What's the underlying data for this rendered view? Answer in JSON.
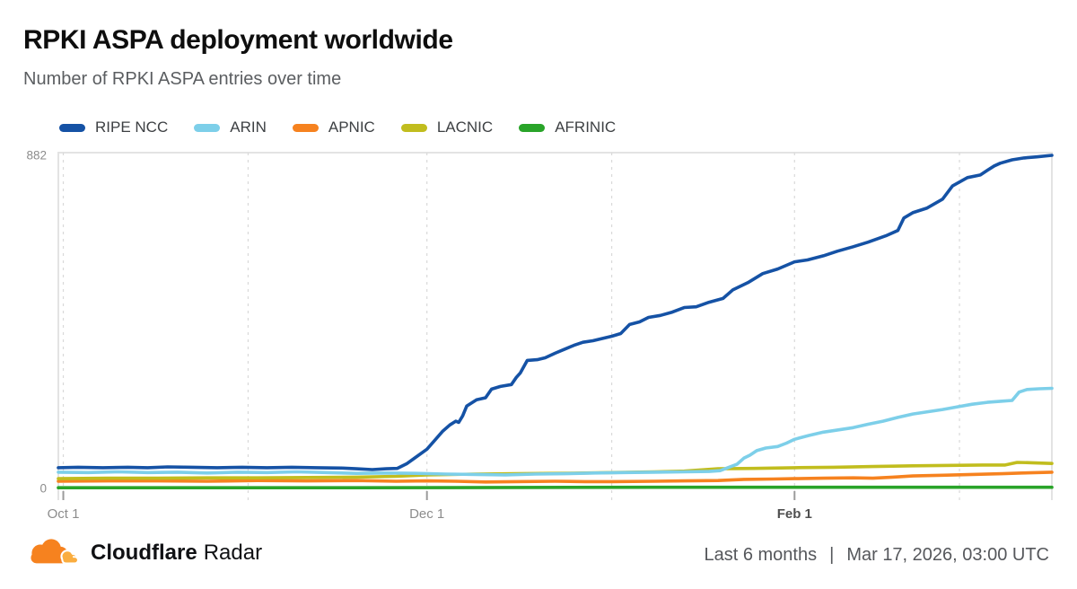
{
  "header": {
    "title": "RPKI ASPA deployment worldwide",
    "subtitle": "Number of RPKI ASPA entries over time"
  },
  "footer": {
    "brand_bold": "Cloudflare",
    "brand_regular": "Radar",
    "range_label": "Last 6 months",
    "separator": "|",
    "timestamp": "Mar 17, 2026, 03:00 UTC",
    "logo_main_color": "#F6821F",
    "logo_accent_color": "#FAAD3F"
  },
  "chart_data": {
    "type": "line",
    "title": "RPKI ASPA deployment worldwide",
    "subtitle": "Number of RPKI ASPA entries over time",
    "xlabel": "",
    "ylabel": "",
    "ylim": [
      0,
      882
    ],
    "grid": "vertical-dashed",
    "legend_position": "top",
    "y_ticks": [
      {
        "value": 882,
        "label": "882"
      },
      {
        "value": 0,
        "label": "0"
      }
    ],
    "x_gridlines": [
      {
        "pos": 0.005,
        "label": "Oct 1",
        "bold": false
      },
      {
        "pos": 0.191,
        "label": "",
        "bold": false
      },
      {
        "pos": 0.371,
        "label": "Dec 1",
        "bold": false
      },
      {
        "pos": 0.557,
        "label": "",
        "bold": false
      },
      {
        "pos": 0.741,
        "label": "Feb 1",
        "bold": true
      },
      {
        "pos": 0.907,
        "label": "",
        "bold": false
      }
    ],
    "series": [
      {
        "name": "AFRINIC",
        "color": "#29A429",
        "points": [
          [
            0,
            2
          ],
          [
            0.3,
            2
          ],
          [
            0.6,
            3
          ],
          [
            1,
            3
          ]
        ]
      },
      {
        "name": "APNIC",
        "color": "#F6821F",
        "points": [
          [
            0,
            19
          ],
          [
            0.05,
            20
          ],
          [
            0.1,
            20
          ],
          [
            0.15,
            19
          ],
          [
            0.2,
            21
          ],
          [
            0.25,
            20
          ],
          [
            0.3,
            21
          ],
          [
            0.34,
            19
          ],
          [
            0.371,
            20
          ],
          [
            0.4,
            19
          ],
          [
            0.43,
            17
          ],
          [
            0.46,
            18
          ],
          [
            0.5,
            19
          ],
          [
            0.53,
            18
          ],
          [
            0.557,
            18
          ],
          [
            0.6,
            19
          ],
          [
            0.63,
            20
          ],
          [
            0.664,
            21
          ],
          [
            0.69,
            24
          ],
          [
            0.72,
            25
          ],
          [
            0.741,
            26
          ],
          [
            0.77,
            27
          ],
          [
            0.8,
            28
          ],
          [
            0.82,
            27
          ],
          [
            0.84,
            30
          ],
          [
            0.86,
            33
          ],
          [
            0.89,
            35
          ],
          [
            0.92,
            37
          ],
          [
            0.95,
            39
          ],
          [
            0.97,
            41
          ],
          [
            1,
            43
          ]
        ]
      },
      {
        "name": "LACNIC",
        "color": "#C1BD1E",
        "points": [
          [
            0,
            26
          ],
          [
            0.05,
            27
          ],
          [
            0.1,
            27
          ],
          [
            0.15,
            28
          ],
          [
            0.2,
            28
          ],
          [
            0.25,
            29
          ],
          [
            0.3,
            30
          ],
          [
            0.34,
            32
          ],
          [
            0.371,
            36
          ],
          [
            0.42,
            38
          ],
          [
            0.46,
            39
          ],
          [
            0.5,
            40
          ],
          [
            0.53,
            41
          ],
          [
            0.557,
            42
          ],
          [
            0.6,
            44
          ],
          [
            0.63,
            46
          ],
          [
            0.664,
            52
          ],
          [
            0.7,
            53
          ],
          [
            0.741,
            55
          ],
          [
            0.78,
            56
          ],
          [
            0.82,
            58
          ],
          [
            0.86,
            60
          ],
          [
            0.9,
            61
          ],
          [
            0.93,
            62
          ],
          [
            0.953,
            62
          ],
          [
            0.965,
            69
          ],
          [
            0.98,
            68
          ],
          [
            1,
            66
          ]
        ]
      },
      {
        "name": "ARIN",
        "color": "#7DCFE9",
        "points": [
          [
            0,
            43
          ],
          [
            0.03,
            42
          ],
          [
            0.06,
            44
          ],
          [
            0.09,
            42
          ],
          [
            0.12,
            43
          ],
          [
            0.15,
            41
          ],
          [
            0.18,
            43
          ],
          [
            0.21,
            42
          ],
          [
            0.24,
            44
          ],
          [
            0.27,
            42
          ],
          [
            0.3,
            40
          ],
          [
            0.33,
            41
          ],
          [
            0.36,
            40
          ],
          [
            0.39,
            38
          ],
          [
            0.42,
            37
          ],
          [
            0.45,
            36
          ],
          [
            0.48,
            38
          ],
          [
            0.51,
            39
          ],
          [
            0.54,
            41
          ],
          [
            0.57,
            42
          ],
          [
            0.6,
            43
          ],
          [
            0.63,
            44
          ],
          [
            0.655,
            45
          ],
          [
            0.666,
            47
          ],
          [
            0.675,
            56
          ],
          [
            0.683,
            64
          ],
          [
            0.69,
            80
          ],
          [
            0.696,
            88
          ],
          [
            0.703,
            100
          ],
          [
            0.712,
            107
          ],
          [
            0.724,
            111
          ],
          [
            0.733,
            120
          ],
          [
            0.741,
            130
          ],
          [
            0.755,
            140
          ],
          [
            0.77,
            149
          ],
          [
            0.785,
            155
          ],
          [
            0.8,
            161
          ],
          [
            0.815,
            170
          ],
          [
            0.83,
            178
          ],
          [
            0.845,
            188
          ],
          [
            0.86,
            197
          ],
          [
            0.875,
            203
          ],
          [
            0.89,
            209
          ],
          [
            0.905,
            216
          ],
          [
            0.92,
            223
          ],
          [
            0.935,
            228
          ],
          [
            0.95,
            231
          ],
          [
            0.96,
            233
          ],
          [
            0.967,
            255
          ],
          [
            0.975,
            262
          ],
          [
            0.987,
            264
          ],
          [
            1,
            265
          ]
        ]
      },
      {
        "name": "RIPE NCC",
        "color": "#1552A5",
        "points": [
          [
            0,
            55
          ],
          [
            0.02,
            56
          ],
          [
            0.045,
            55
          ],
          [
            0.07,
            56
          ],
          [
            0.09,
            55
          ],
          [
            0.11,
            57
          ],
          [
            0.135,
            56
          ],
          [
            0.16,
            55
          ],
          [
            0.185,
            56
          ],
          [
            0.21,
            55
          ],
          [
            0.235,
            56
          ],
          [
            0.26,
            55
          ],
          [
            0.285,
            54
          ],
          [
            0.3,
            52
          ],
          [
            0.316,
            50
          ],
          [
            0.33,
            52
          ],
          [
            0.341,
            53
          ],
          [
            0.351,
            66
          ],
          [
            0.359,
            81
          ],
          [
            0.371,
            104
          ],
          [
            0.379,
            128
          ],
          [
            0.387,
            152
          ],
          [
            0.394,
            168
          ],
          [
            0.4,
            178
          ],
          [
            0.403,
            175
          ],
          [
            0.407,
            192
          ],
          [
            0.411,
            218
          ],
          [
            0.421,
            235
          ],
          [
            0.43,
            240
          ],
          [
            0.436,
            263
          ],
          [
            0.445,
            270
          ],
          [
            0.456,
            275
          ],
          [
            0.461,
            294
          ],
          [
            0.465,
            306
          ],
          [
            0.472,
            339
          ],
          [
            0.482,
            341
          ],
          [
            0.49,
            346
          ],
          [
            0.5,
            358
          ],
          [
            0.509,
            368
          ],
          [
            0.519,
            379
          ],
          [
            0.528,
            387
          ],
          [
            0.538,
            391
          ],
          [
            0.557,
            403
          ],
          [
            0.566,
            410
          ],
          [
            0.575,
            434
          ],
          [
            0.585,
            441
          ],
          [
            0.594,
            453
          ],
          [
            0.606,
            458
          ],
          [
            0.618,
            467
          ],
          [
            0.63,
            479
          ],
          [
            0.642,
            481
          ],
          [
            0.655,
            493
          ],
          [
            0.669,
            503
          ],
          [
            0.679,
            526
          ],
          [
            0.694,
            545
          ],
          [
            0.709,
            569
          ],
          [
            0.724,
            581
          ],
          [
            0.741,
            600
          ],
          [
            0.754,
            605
          ],
          [
            0.77,
            616
          ],
          [
            0.784,
            628
          ],
          [
            0.8,
            640
          ],
          [
            0.815,
            652
          ],
          [
            0.833,
            669
          ],
          [
            0.845,
            683
          ],
          [
            0.851,
            716
          ],
          [
            0.86,
            730
          ],
          [
            0.874,
            742
          ],
          [
            0.89,
            766
          ],
          [
            0.9,
            801
          ],
          [
            0.915,
            823
          ],
          [
            0.928,
            830
          ],
          [
            0.935,
            842
          ],
          [
            0.942,
            854
          ],
          [
            0.948,
            861
          ],
          [
            0.96,
            870
          ],
          [
            0.972,
            875
          ],
          [
            0.985,
            878
          ],
          [
            1,
            882
          ]
        ]
      }
    ],
    "legend_order": [
      "RIPE NCC",
      "ARIN",
      "APNIC",
      "LACNIC",
      "AFRINIC"
    ]
  },
  "style": {
    "plot_border_color": "#e3e3e3",
    "gridline_color": "#d9d9d9",
    "tick_color": "#9b9b9b",
    "axis_label_color": "#8c8c8c",
    "axis_label_bold_color": "#4f4f4f"
  }
}
